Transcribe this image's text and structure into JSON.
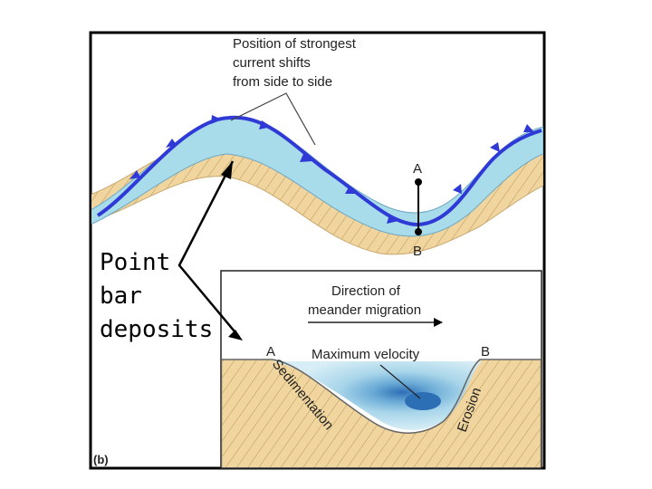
{
  "figure": {
    "panel_label": "(b)",
    "callout_top": [
      "Position of strongest",
      "current shifts",
      "from side to side"
    ],
    "point_a": "A",
    "point_b": "B"
  },
  "inset": {
    "direction": [
      "Direction of",
      "meander migration"
    ],
    "max_velocity": "Maximum velocity",
    "label_a": "A",
    "label_b": "B",
    "sedimentation": "Sedimentation",
    "erosion": "Erosion"
  },
  "annotation": {
    "point_bar": [
      "Point",
      "bar",
      "deposits"
    ]
  },
  "colors": {
    "water": "#a8dcea",
    "sediment": "#f0d59e",
    "current_arrow": "#2f3ad6",
    "max_velocity_core": "#2d6fb5"
  }
}
